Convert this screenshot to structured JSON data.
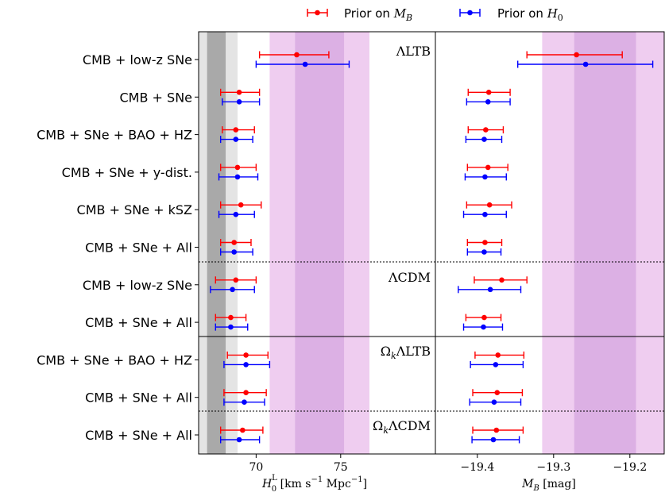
{
  "chart_data": {
    "type": "forest",
    "legend": {
      "placement": "top-center",
      "entries": [
        {
          "series": "mb",
          "label": "Prior on M_B",
          "color": "#ff0000"
        },
        {
          "series": "h0",
          "label": "Prior on H_0",
          "color": "#0000ff"
        }
      ]
    },
    "panels": [
      {
        "id": "h0",
        "xlabel": "H_0^L [km s^-1 Mpc^-1]",
        "xlim": [
          66.6,
          80.6
        ],
        "xticks": [
          70,
          75
        ],
        "grey_bands": [
          {
            "range": [
              67.1,
              68.2
            ],
            "shade": "#a8a8a8"
          },
          {
            "range": [
              66.6,
              68.9
            ],
            "shade": "#d3d3d3"
          }
        ],
        "magenta_bands": [
          {
            "range": [
              72.3,
              75.2
            ],
            "shade": "#dcb0e4"
          },
          {
            "range": [
              70.8,
              76.7
            ],
            "shade": "#efcdf0"
          }
        ]
      },
      {
        "id": "mb",
        "xlabel": "M_B [mag]",
        "xlim": [
          -19.455,
          -19.155
        ],
        "xticks": [
          -19.4,
          -19.3,
          -19.2
        ],
        "grey_bands": [],
        "magenta_bands": [
          {
            "range": [
              -19.273,
              -19.192
            ],
            "shade": "#dcb0e4"
          },
          {
            "range": [
              -19.315,
              -19.155
            ],
            "shade": "#efcdf0"
          }
        ]
      }
    ],
    "groups": [
      {
        "name": "ΛLTB",
        "rows": [
          0,
          5
        ]
      },
      {
        "name": "ΛCDM",
        "rows": [
          6,
          7
        ]
      },
      {
        "name": "Ω_kΛLTB",
        "rows": [
          8,
          9
        ]
      },
      {
        "name": "Ω_kΛCDM",
        "rows": [
          10,
          10
        ]
      }
    ],
    "rows": [
      {
        "label": "CMB + low-z SNe",
        "h0": {
          "mb": [
            72.4,
            70.2,
            74.3
          ],
          "h0": [
            72.9,
            70.0,
            75.5
          ]
        },
        "mb": {
          "mb": [
            -19.27,
            -19.335,
            -19.21
          ],
          "h0": [
            -19.258,
            -19.347,
            -19.17
          ]
        }
      },
      {
        "label": "CMB + SNe",
        "h0": {
          "mb": [
            69.0,
            67.9,
            70.2
          ],
          "h0": [
            69.0,
            68.0,
            70.2
          ]
        },
        "mb": {
          "mb": [
            -19.385,
            -19.412,
            -19.357
          ],
          "h0": [
            -19.386,
            -19.414,
            -19.357
          ]
        }
      },
      {
        "label": "CMB + SNe + BAO + HZ",
        "h0": {
          "mb": [
            68.8,
            68.0,
            69.9
          ],
          "h0": [
            68.8,
            67.9,
            69.8
          ]
        },
        "mb": {
          "mb": [
            -19.389,
            -19.412,
            -19.366
          ],
          "h0": [
            -19.391,
            -19.415,
            -19.368
          ]
        }
      },
      {
        "label": "CMB + SNe + y-dist.",
        "h0": {
          "mb": [
            68.9,
            67.9,
            70.0
          ],
          "h0": [
            68.9,
            67.8,
            70.1
          ]
        },
        "mb": {
          "mb": [
            -19.386,
            -19.413,
            -19.36
          ],
          "h0": [
            -19.39,
            -19.416,
            -19.362
          ]
        }
      },
      {
        "label": "CMB + SNe + kSZ",
        "h0": {
          "mb": [
            69.1,
            67.9,
            70.3
          ],
          "h0": [
            68.8,
            67.8,
            69.9
          ]
        },
        "mb": {
          "mb": [
            -19.384,
            -19.414,
            -19.355
          ],
          "h0": [
            -19.39,
            -19.418,
            -19.362
          ]
        }
      },
      {
        "label": "CMB + SNe + All",
        "h0": {
          "mb": [
            68.7,
            67.9,
            69.7
          ],
          "h0": [
            68.7,
            67.9,
            69.8
          ]
        },
        "mb": {
          "mb": [
            -19.39,
            -19.413,
            -19.368
          ],
          "h0": [
            -19.391,
            -19.413,
            -19.369
          ]
        }
      },
      {
        "label": "CMB + low-z SNe",
        "h0": {
          "mb": [
            68.8,
            67.6,
            70.0
          ],
          "h0": [
            68.6,
            67.3,
            69.9
          ]
        },
        "mb": {
          "mb": [
            -19.368,
            -19.404,
            -19.335
          ],
          "h0": [
            -19.383,
            -19.425,
            -19.343
          ]
        }
      },
      {
        "label": "CMB + SNe + All",
        "h0": {
          "mb": [
            68.5,
            67.6,
            69.4
          ],
          "h0": [
            68.5,
            67.6,
            69.5
          ]
        },
        "mb": {
          "mb": [
            -19.391,
            -19.415,
            -19.369
          ],
          "h0": [
            -19.392,
            -19.418,
            -19.367
          ]
        }
      },
      {
        "label": "CMB + SNe + BAO + HZ",
        "h0": {
          "mb": [
            69.4,
            68.3,
            70.7
          ],
          "h0": [
            69.4,
            68.1,
            70.8
          ]
        },
        "mb": {
          "mb": [
            -19.373,
            -19.403,
            -19.339
          ],
          "h0": [
            -19.376,
            -19.409,
            -19.34
          ]
        }
      },
      {
        "label": "CMB + SNe + All",
        "h0": {
          "mb": [
            69.4,
            68.1,
            70.6
          ],
          "h0": [
            69.3,
            68.1,
            70.5
          ]
        },
        "mb": {
          "mb": [
            -19.374,
            -19.406,
            -19.341
          ],
          "h0": [
            -19.378,
            -19.41,
            -19.343
          ]
        }
      },
      {
        "label": "CMB + SNe + All",
        "h0": {
          "mb": [
            69.2,
            67.9,
            70.4
          ],
          "h0": [
            69.0,
            67.9,
            70.2
          ]
        },
        "mb": {
          "mb": [
            -19.375,
            -19.406,
            -19.34
          ],
          "h0": [
            -19.379,
            -19.407,
            -19.345
          ]
        }
      }
    ]
  }
}
